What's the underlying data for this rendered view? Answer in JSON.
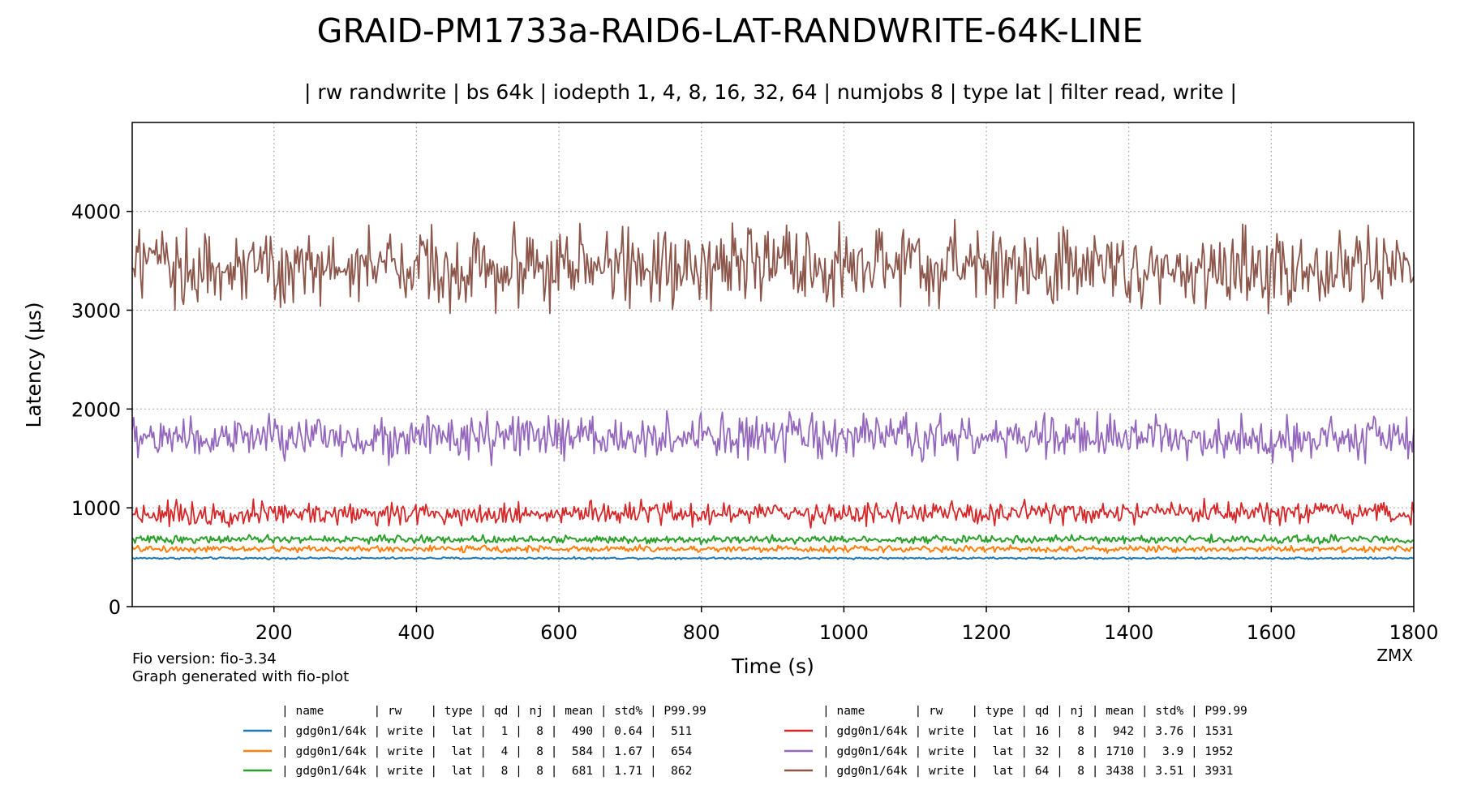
{
  "chart_data": {
    "type": "line",
    "title": "GRAID-PM1733a-RAID6-LAT-RANDWRITE-64K-LINE",
    "subtitle": "| rw randwrite | bs 64k | iodepth 1, 4, 8, 16, 32, 64 | numjobs 8 | type lat | filter read, write |",
    "xlabel": "Time (s)",
    "ylabel": "Latency (µs)",
    "xlim": [
      1,
      1800
    ],
    "ylim": [
      0,
      4900
    ],
    "xticks": [
      200,
      400,
      600,
      800,
      1000,
      1200,
      1400,
      1600,
      1800
    ],
    "yticks": [
      0,
      1000,
      2000,
      3000,
      4000
    ],
    "grid": true,
    "legend_placement": "bottom",
    "series": [
      {
        "name": "gdg0n1/64k write lat qd 1",
        "color": "#1f77b4",
        "mean": 490,
        "std_pct": 0.64,
        "p9999": 511
      },
      {
        "name": "gdg0n1/64k write lat qd 4",
        "color": "#ff7f0e",
        "mean": 584,
        "std_pct": 1.67,
        "p9999": 654
      },
      {
        "name": "gdg0n1/64k write lat qd 8",
        "color": "#2ca02c",
        "mean": 681,
        "std_pct": 1.71,
        "p9999": 862
      },
      {
        "name": "gdg0n1/64k write lat qd 16",
        "color": "#d62728",
        "mean": 942,
        "std_pct": 3.76,
        "p9999": 1531
      },
      {
        "name": "gdg0n1/64k write lat qd 32",
        "color": "#9467bd",
        "mean": 1710,
        "std_pct": 3.9,
        "p9999": 1952
      },
      {
        "name": "gdg0n1/64k write lat qd 64",
        "color": "#8c564b",
        "mean": 3438,
        "std_pct": 3.51,
        "p9999": 3931
      }
    ]
  },
  "notes": {
    "fio_version": "Fio version: fio-3.34",
    "generator": "Graph generated with fio-plot",
    "corner": "ZMX"
  },
  "legend": {
    "header": "| name       | rw    | type | qd | nj | mean | std% | P99.99",
    "rows": [
      "| gdg0n1/64k | write |  lat |  1 |  8 |  490 | 0.64 |  511",
      "| gdg0n1/64k | write |  lat |  4 |  8 |  584 | 1.67 |  654",
      "| gdg0n1/64k | write |  lat |  8 |  8 |  681 | 1.71 |  862",
      "| gdg0n1/64k | write |  lat | 16 |  8 |  942 | 3.76 | 1531",
      "| gdg0n1/64k | write |  lat | 32 |  8 | 1710 |  3.9 | 1952",
      "| gdg0n1/64k | write |  lat | 64 |  8 | 3438 | 3.51 | 3931"
    ]
  }
}
